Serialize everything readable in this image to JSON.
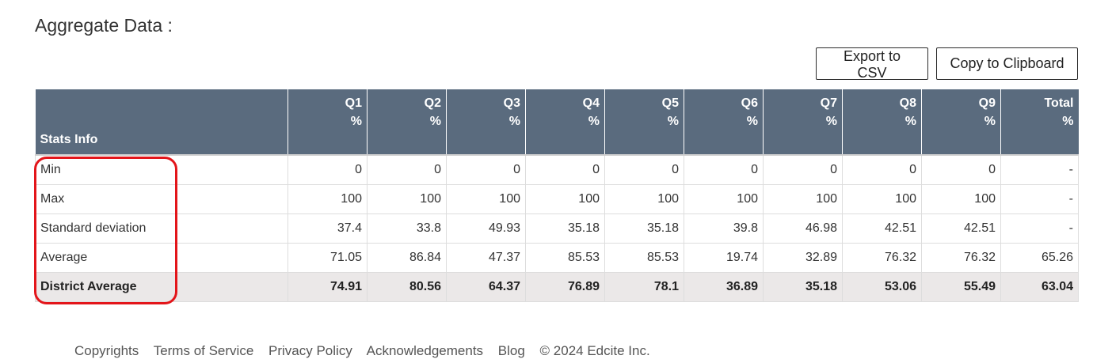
{
  "heading": "Aggregate Data :",
  "buttons": {
    "export_csv": "Export to CSV",
    "copy_clipboard": "Copy to Clipboard"
  },
  "table": {
    "columns": [
      {
        "name": "Stats Info",
        "unit": ""
      },
      {
        "name": "Q1",
        "unit": "%"
      },
      {
        "name": "Q2",
        "unit": "%"
      },
      {
        "name": "Q3",
        "unit": "%"
      },
      {
        "name": "Q4",
        "unit": "%"
      },
      {
        "name": "Q5",
        "unit": "%"
      },
      {
        "name": "Q6",
        "unit": "%"
      },
      {
        "name": "Q7",
        "unit": "%"
      },
      {
        "name": "Q8",
        "unit": "%"
      },
      {
        "name": "Q9",
        "unit": "%"
      },
      {
        "name": "Total",
        "unit": "%"
      }
    ],
    "rows": [
      {
        "label": "Min",
        "values": [
          "0",
          "0",
          "0",
          "0",
          "0",
          "0",
          "0",
          "0",
          "0",
          "-"
        ]
      },
      {
        "label": "Max",
        "values": [
          "100",
          "100",
          "100",
          "100",
          "100",
          "100",
          "100",
          "100",
          "100",
          "-"
        ]
      },
      {
        "label": "Standard deviation",
        "values": [
          "37.4",
          "33.8",
          "49.93",
          "35.18",
          "35.18",
          "39.8",
          "46.98",
          "42.51",
          "42.51",
          "-"
        ]
      },
      {
        "label": "Average",
        "values": [
          "71.05",
          "86.84",
          "47.37",
          "85.53",
          "85.53",
          "19.74",
          "32.89",
          "76.32",
          "76.32",
          "65.26"
        ]
      },
      {
        "label": "District Average",
        "values": [
          "74.91",
          "80.56",
          "64.37",
          "76.89",
          "78.1",
          "36.89",
          "35.18",
          "53.06",
          "55.49",
          "63.04"
        ]
      }
    ]
  },
  "highlight_color": "#e3151a",
  "header_color": "#5a6b7e",
  "footer": {
    "links": [
      "Copyrights",
      "Terms of Service",
      "Privacy Policy",
      "Acknowledgements",
      "Blog"
    ],
    "copyright": "© 2024 Edcite Inc."
  }
}
